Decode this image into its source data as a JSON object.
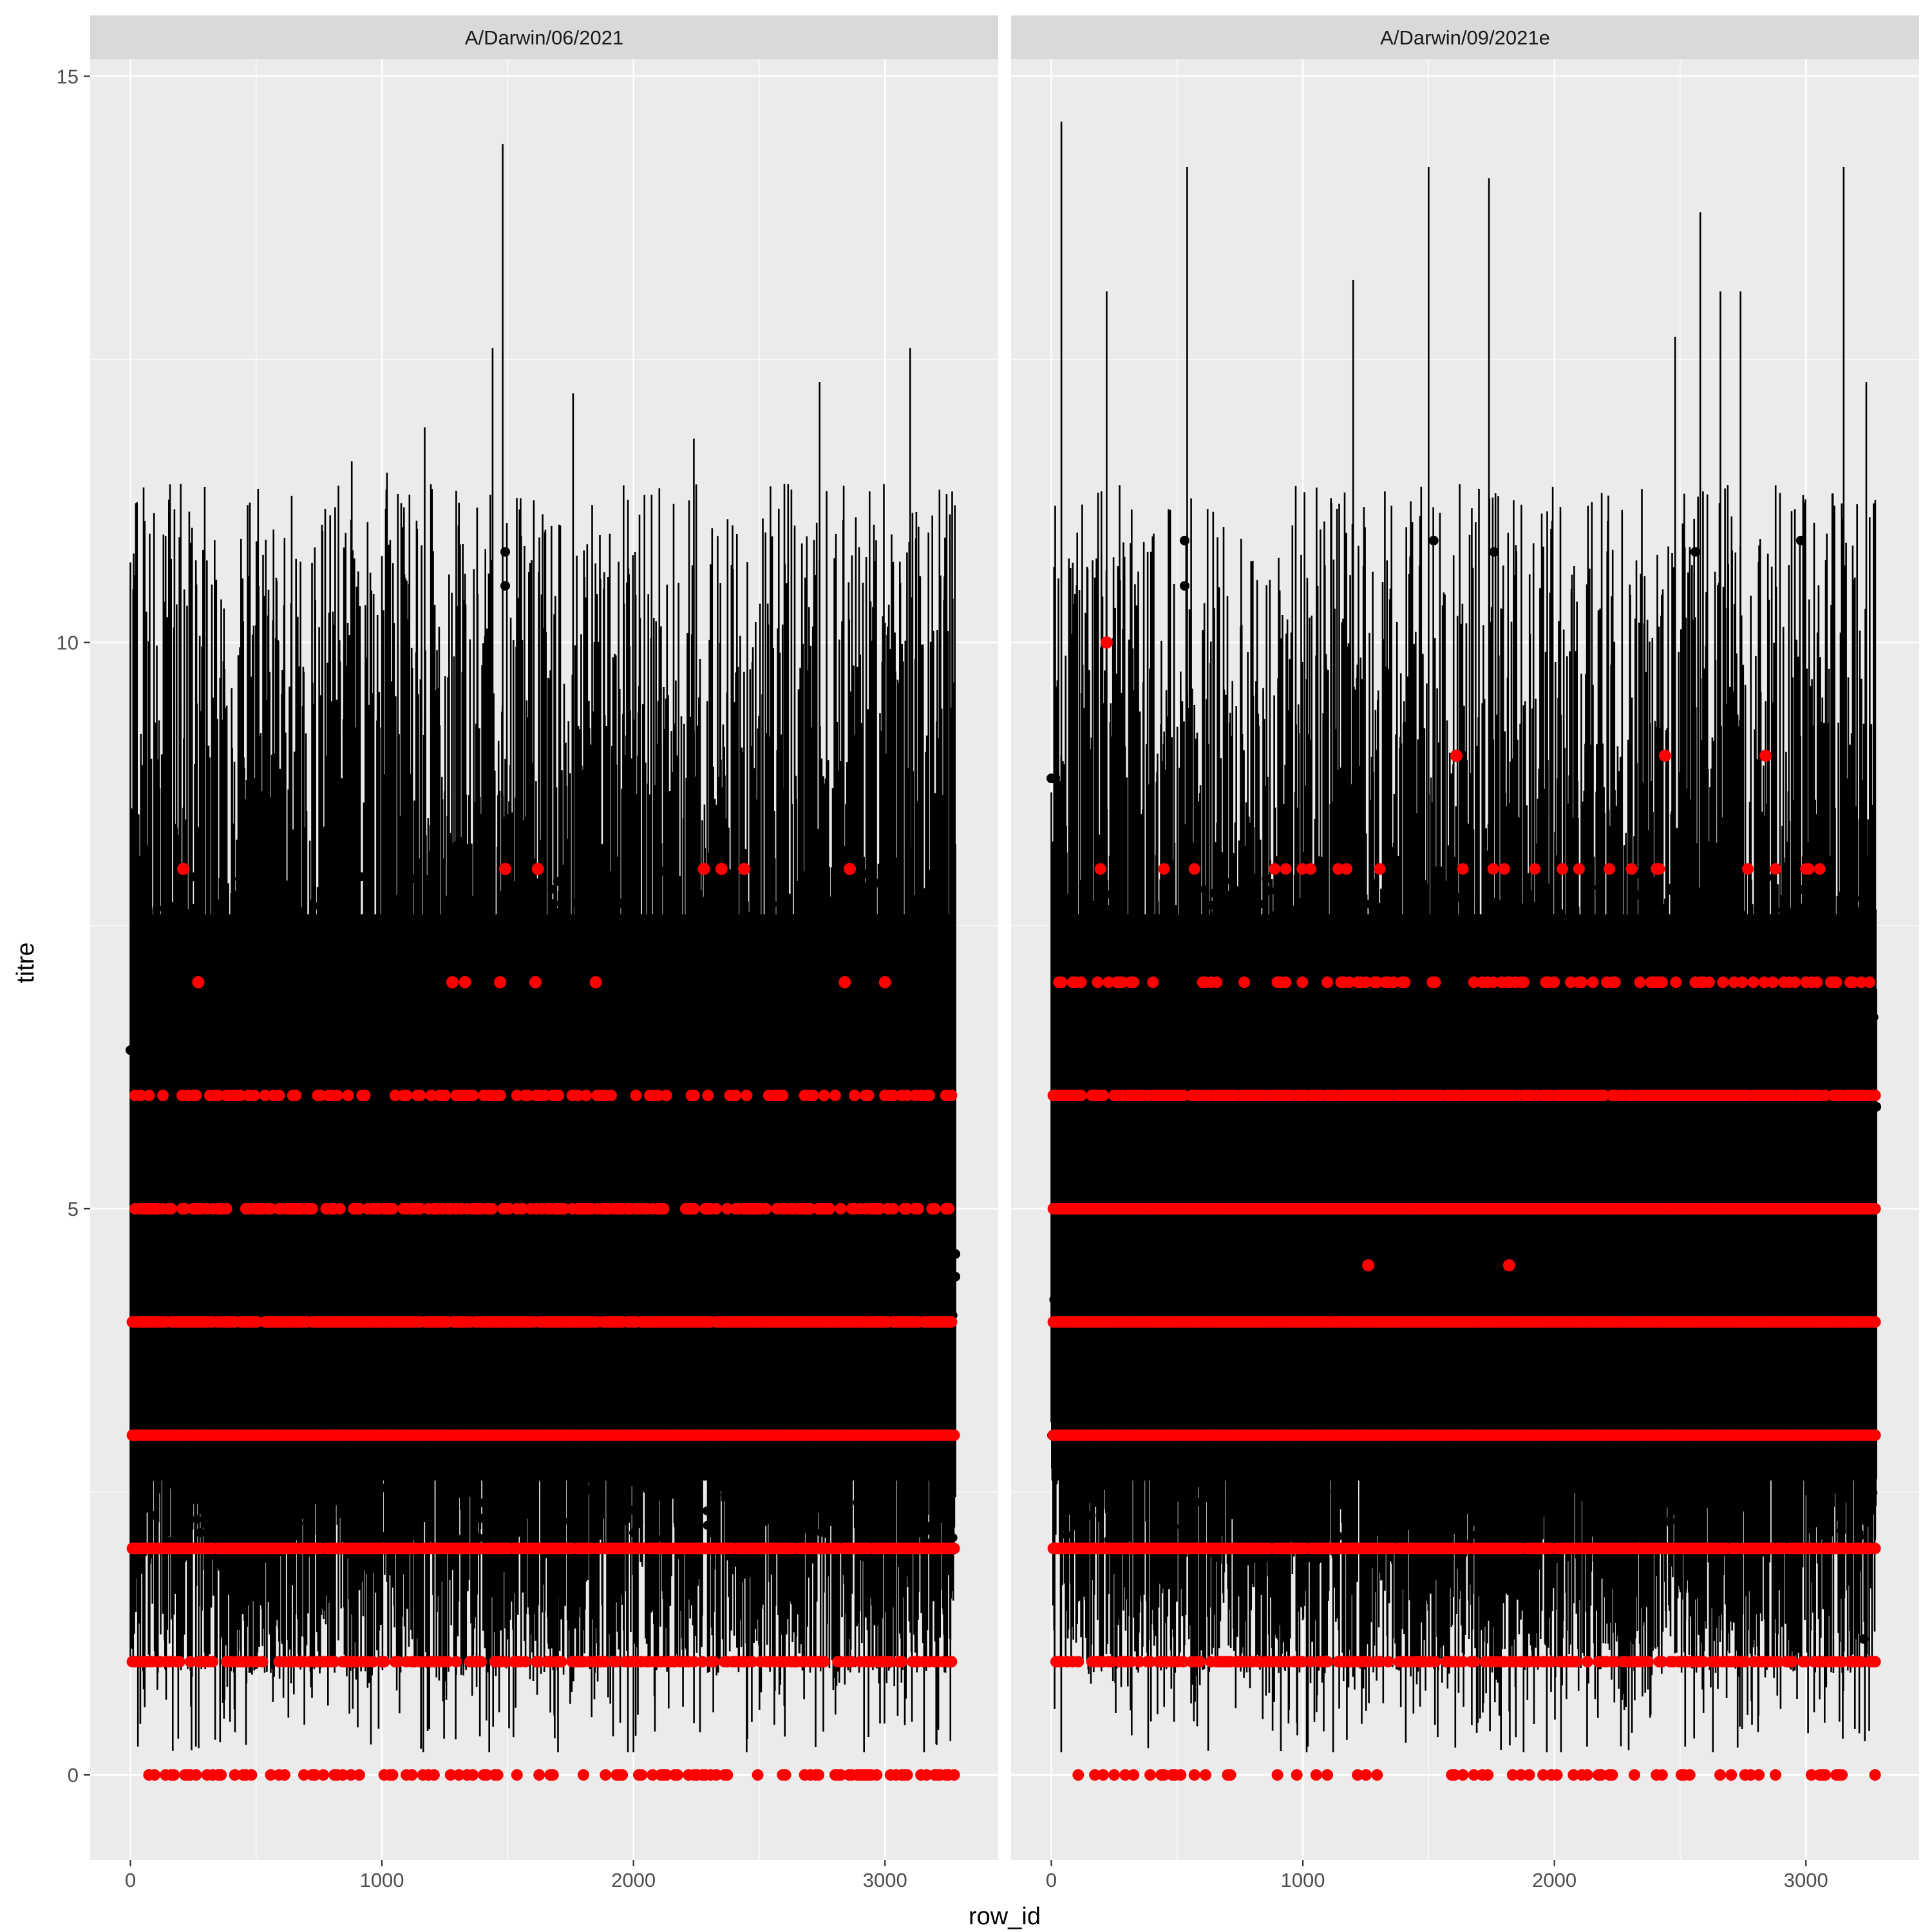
{
  "chart_data": {
    "type": "scatter",
    "xlabel": "row_id",
    "ylabel": "titre",
    "xlim": [
      -160,
      3450
    ],
    "ylim": [
      -0.75,
      15.15
    ],
    "x_ticks": [
      0,
      1000,
      2000,
      3000
    ],
    "x_tick_labels": [
      "0",
      "1000",
      "2000",
      "3000"
    ],
    "y_ticks": [
      0,
      5,
      10,
      15
    ],
    "y_tick_labels": [
      "0",
      "5",
      "10",
      "15"
    ],
    "grid": true,
    "legend": "none",
    "panels": [
      {
        "strip_label": "A/Darwin/06/2021",
        "row_id_range": [
          0,
          3280
        ],
        "red_levels": [
          0,
          1,
          2,
          3,
          4,
          5,
          6,
          7,
          8
        ],
        "red_rare_points": [
          [
            210,
            8
          ],
          [
            270,
            7
          ],
          [
            1280,
            7
          ],
          [
            1330,
            7
          ],
          [
            1470,
            7
          ],
          [
            1490,
            8
          ],
          [
            1610,
            7
          ],
          [
            1620,
            8
          ],
          [
            1850,
            7
          ],
          [
            2280,
            8
          ],
          [
            2350,
            8
          ],
          [
            2440,
            8
          ],
          [
            2840,
            7
          ],
          [
            2860,
            8
          ],
          [
            3000,
            7
          ]
        ],
        "line_max_peaks": [
          [
            1480,
            14.4
          ],
          [
            1440,
            12.6
          ],
          [
            1760,
            12.2
          ],
          [
            2240,
            11.8
          ],
          [
            3100,
            12.6
          ],
          [
            3250,
            10.1
          ],
          [
            880,
            11.6
          ],
          [
            200,
            11.4
          ],
          [
            2740,
            12.3
          ],
          [
            2600,
            11.4
          ],
          [
            1170,
            11.9
          ],
          [
            1020,
            11.5
          ]
        ],
        "line_min_dips": [
          [
            30,
            0.25
          ],
          [
            1700,
            0.2
          ],
          [
            2000,
            0.2
          ],
          [
            2450,
            0.2
          ],
          [
            3260,
            0.3
          ]
        ],
        "black_notable_points": [
          [
            1490,
            10.8
          ],
          [
            1490,
            10.5
          ],
          [
            0,
            6.4
          ],
          [
            20,
            5.7
          ],
          [
            3280,
            4.6
          ],
          [
            3280,
            4.4
          ]
        ]
      },
      {
        "strip_label": "A/Darwin/09/2021e",
        "row_id_range": [
          0,
          3280
        ],
        "red_levels": [
          0,
          1,
          2,
          3,
          4,
          5,
          6,
          7,
          8
        ],
        "red_rare_points": [
          [
            220,
            10
          ],
          [
            1260,
            4.5
          ],
          [
            1820,
            4.5
          ],
          [
            1610,
            9
          ],
          [
            2440,
            9
          ],
          [
            2840,
            9
          ]
        ],
        "line_max_peaks": [
          [
            40,
            14.6
          ],
          [
            540,
            14.2
          ],
          [
            1500,
            14.2
          ],
          [
            1740,
            14.1
          ],
          [
            3150,
            14.2
          ],
          [
            220,
            13.1
          ],
          [
            1200,
            13.2
          ],
          [
            2580,
            13.8
          ],
          [
            2660,
            13.1
          ],
          [
            2740,
            13.1
          ],
          [
            2480,
            12.7
          ],
          [
            3240,
            12.3
          ]
        ],
        "line_min_dips": [
          [
            1020,
            0.25
          ],
          [
            1970,
            0.2
          ],
          [
            2130,
            0.25
          ],
          [
            2520,
            0.25
          ]
        ],
        "black_notable_points": [
          [
            530,
            10.9
          ],
          [
            530,
            10.5
          ],
          [
            1520,
            10.9
          ],
          [
            1760,
            10.8
          ],
          [
            2560,
            10.8
          ],
          [
            2980,
            10.9
          ],
          [
            0,
            8.8
          ],
          [
            3280,
            5.9
          ],
          [
            3230,
            1.2
          ]
        ]
      }
    ]
  }
}
